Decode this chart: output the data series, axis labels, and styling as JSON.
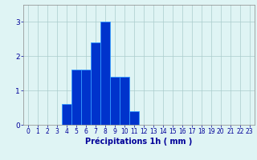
{
  "categories": [
    0,
    1,
    2,
    3,
    4,
    5,
    6,
    7,
    8,
    9,
    10,
    11,
    12,
    13,
    14,
    15,
    16,
    17,
    18,
    19,
    20,
    21,
    22,
    23
  ],
  "values": [
    0,
    0,
    0,
    0,
    0.6,
    1.6,
    1.6,
    2.4,
    3.0,
    1.4,
    1.4,
    0.4,
    0,
    0,
    0,
    0,
    0,
    0,
    0,
    0,
    0,
    0,
    0,
    0
  ],
  "bar_color": "#0033cc",
  "bar_edge_color": "#3399ff",
  "background_color": "#dff4f4",
  "grid_color": "#aacccc",
  "xlabel": "Précipitations 1h ( mm )",
  "xlabel_color": "#000099",
  "tick_color": "#000099",
  "axis_color": "#888888",
  "ylim": [
    0,
    3.5
  ],
  "yticks": [
    0,
    1,
    2,
    3
  ],
  "xlim": [
    -0.5,
    23.5
  ],
  "tick_fontsize": 5.5,
  "ylabel_fontsize": 7.0
}
